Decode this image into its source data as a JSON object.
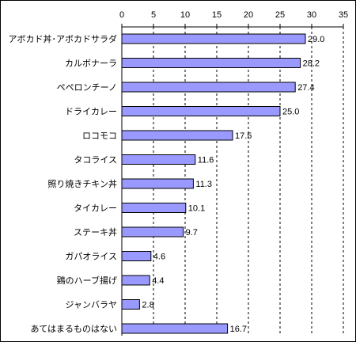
{
  "chart_data": {
    "type": "bar",
    "orientation": "horizontal",
    "categories": [
      "アボカド丼･アボカドサラダ",
      "カルボナーラ",
      "ペペロンチーノ",
      "ドライカレー",
      "ロコモコ",
      "タコライス",
      "照り焼きチキン丼",
      "タイカレー",
      "ステーキ丼",
      "ガパオライス",
      "鶏のハーブ揚げ",
      "ジャンバラヤ",
      "あてはまるものはない"
    ],
    "values": [
      29.0,
      28.2,
      27.4,
      25.0,
      17.5,
      11.6,
      11.3,
      10.1,
      9.7,
      4.6,
      4.4,
      2.8,
      16.7
    ],
    "value_labels": [
      "29.0",
      "28.2",
      "27.4",
      "25.0",
      "17.5",
      "11.6",
      "11.3",
      "10.1",
      "9.7",
      "4.6",
      "4.4",
      "2.8",
      "16.7"
    ],
    "title": "",
    "xlabel": "",
    "ylabel": "",
    "xlim": [
      0,
      35
    ],
    "xticks": [
      "0",
      "5",
      "10",
      "15",
      "20",
      "25",
      "30",
      "35"
    ],
    "x_axis_position": "top",
    "grid": "vertical dashed",
    "legend": "none",
    "bar_color": "#9999ff",
    "bar_edge_color": "#000000"
  }
}
